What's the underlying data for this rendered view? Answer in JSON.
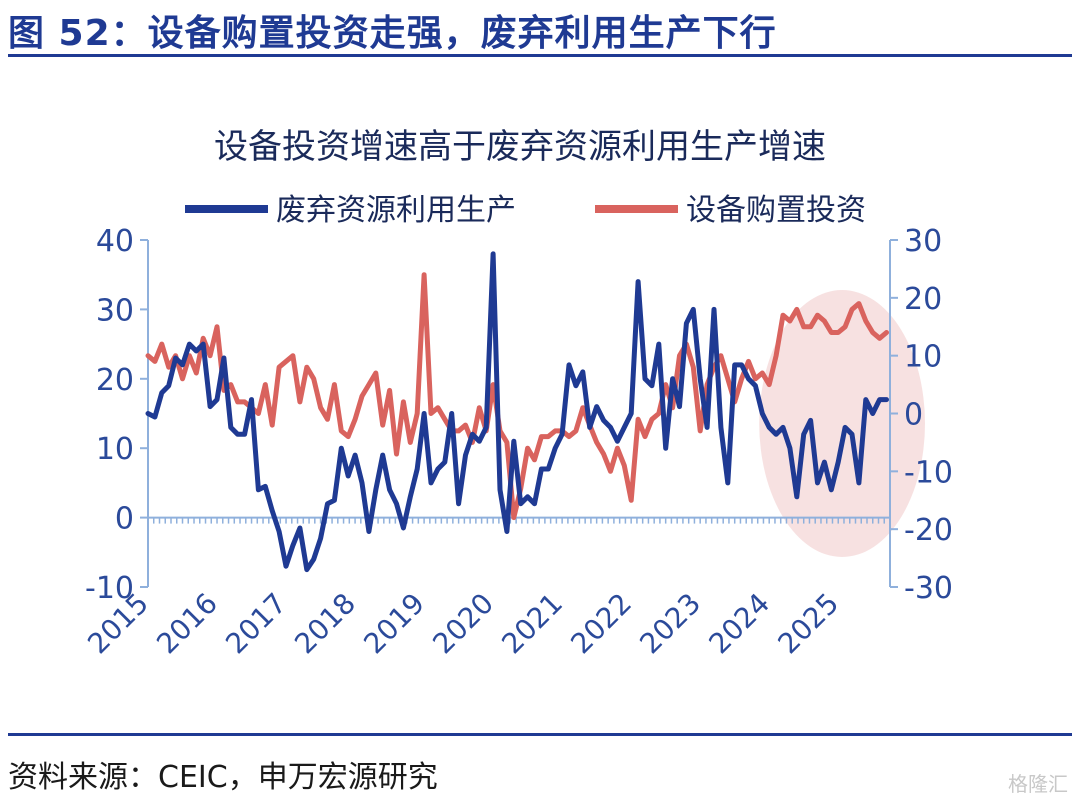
{
  "figure": {
    "title": "图 52：设备购置投资走强，废弃利用生产下行",
    "source": "资料来源：CEIC，申万宏源研究",
    "watermark": "格隆汇"
  },
  "chart_data": {
    "type": "line",
    "title": "设备投资增速高于废弃资源利用生产增速",
    "legend_position": "top",
    "grid": false,
    "x_years": [
      "2015",
      "2016",
      "2017",
      "2018",
      "2019",
      "2020",
      "2021",
      "2022",
      "2023",
      "2024",
      "2025"
    ],
    "x_range": [
      2015.0,
      2025.75
    ],
    "y_left": {
      "range": [
        -10,
        40
      ],
      "ticks": [
        -10,
        0,
        10,
        20,
        30,
        40
      ]
    },
    "y_right": {
      "range": [
        -30,
        30
      ],
      "ticks": [
        -30,
        -20,
        -10,
        0,
        10,
        20,
        30
      ]
    },
    "colors": {
      "blue": "#1f3a93",
      "red": "#d9635e",
      "axis": "#8fb0dc",
      "highlight": "#f6dcdc"
    },
    "highlight_region": {
      "x_from": 2024.0,
      "x_to": 2025.75
    },
    "series": [
      {
        "name": "废弃资源利用生产",
        "axis": "left",
        "color": "#1f3a93",
        "x": [
          2015.0,
          2015.1,
          2015.2,
          2015.3,
          2015.4,
          2015.5,
          2015.6,
          2015.7,
          2015.8,
          2015.9,
          2016.0,
          2016.1,
          2016.2,
          2016.3,
          2016.4,
          2016.5,
          2016.6,
          2016.7,
          2016.8,
          2016.9,
          2017.0,
          2017.1,
          2017.2,
          2017.3,
          2017.4,
          2017.5,
          2017.6,
          2017.7,
          2017.8,
          2017.9,
          2018.0,
          2018.1,
          2018.2,
          2018.3,
          2018.4,
          2018.5,
          2018.6,
          2018.7,
          2018.8,
          2018.9,
          2019.0,
          2019.1,
          2019.2,
          2019.3,
          2019.4,
          2019.5,
          2019.6,
          2019.7,
          2019.8,
          2019.9,
          2020.0,
          2020.1,
          2020.2,
          2020.3,
          2020.4,
          2020.5,
          2020.6,
          2020.7,
          2020.8,
          2020.9,
          2021.0,
          2021.1,
          2021.2,
          2021.3,
          2021.4,
          2021.5,
          2021.6,
          2021.7,
          2021.8,
          2021.9,
          2022.0,
          2022.1,
          2022.2,
          2022.3,
          2022.4,
          2022.5,
          2022.6,
          2022.7,
          2022.8,
          2022.9,
          2023.0,
          2023.1,
          2023.2,
          2023.3,
          2023.4,
          2023.5,
          2023.6,
          2023.7,
          2023.8,
          2023.9,
          2024.0,
          2024.1,
          2024.2,
          2024.3,
          2024.4,
          2024.5,
          2024.6,
          2024.7,
          2024.8,
          2024.9,
          2025.0,
          2025.1,
          2025.2,
          2025.3,
          2025.4,
          2025.5,
          2025.6,
          2025.7
        ],
        "values": [
          15,
          14.5,
          18,
          19,
          23,
          22,
          25,
          24,
          25,
          16,
          17,
          23,
          13,
          12,
          12,
          17,
          4,
          4.5,
          1,
          -2,
          -7,
          -4,
          -1.5,
          -7.5,
          -6,
          -3,
          2,
          2.5,
          10,
          6,
          9,
          5,
          -2,
          4,
          9,
          4,
          2,
          -1.5,
          3,
          7,
          15,
          5,
          7,
          8,
          15,
          2,
          9,
          12,
          11,
          13,
          38,
          4,
          -2,
          11,
          2,
          3,
          2,
          7,
          7,
          10,
          12,
          22,
          19,
          21,
          13,
          16,
          14,
          13,
          11,
          13,
          15,
          34,
          20,
          19,
          25,
          10,
          20,
          16,
          28,
          30,
          20,
          13,
          30,
          13,
          5,
          22,
          22,
          20,
          19,
          15,
          13,
          12,
          13,
          10,
          3,
          12,
          14,
          5,
          8,
          4,
          8,
          13,
          12,
          5,
          17,
          15,
          17,
          17
        ]
      },
      {
        "name": "设备购置投资",
        "axis": "right",
        "color": "#d9635e",
        "x": [
          2015.0,
          2015.1,
          2015.2,
          2015.3,
          2015.4,
          2015.5,
          2015.6,
          2015.7,
          2015.8,
          2015.9,
          2016.0,
          2016.1,
          2016.2,
          2016.3,
          2016.4,
          2016.5,
          2016.6,
          2016.7,
          2016.8,
          2016.9,
          2017.0,
          2017.1,
          2017.2,
          2017.3,
          2017.4,
          2017.5,
          2017.6,
          2017.7,
          2017.8,
          2017.9,
          2018.0,
          2018.1,
          2018.2,
          2018.3,
          2018.4,
          2018.5,
          2018.6,
          2018.7,
          2018.8,
          2018.9,
          2019.0,
          2019.1,
          2019.2,
          2019.3,
          2019.4,
          2019.5,
          2019.6,
          2019.7,
          2019.8,
          2019.9,
          2020.0,
          2020.1,
          2020.2,
          2020.3,
          2020.4,
          2020.5,
          2020.6,
          2020.7,
          2020.8,
          2020.9,
          2021.0,
          2021.1,
          2021.2,
          2021.3,
          2021.4,
          2021.5,
          2021.6,
          2021.7,
          2021.8,
          2021.9,
          2022.0,
          2022.1,
          2022.2,
          2022.3,
          2022.4,
          2022.5,
          2022.6,
          2022.7,
          2022.8,
          2022.9,
          2023.0,
          2023.1,
          2023.2,
          2023.3,
          2023.4,
          2023.5,
          2023.6,
          2023.7,
          2023.8,
          2023.9,
          2024.0,
          2024.1,
          2024.2,
          2024.3,
          2024.4,
          2024.5,
          2024.6,
          2024.7,
          2024.8,
          2024.9,
          2025.0,
          2025.1,
          2025.2,
          2025.3,
          2025.4,
          2025.5,
          2025.6,
          2025.7
        ],
        "values": [
          10,
          9,
          12,
          8,
          10,
          6,
          10,
          7,
          13,
          10,
          15,
          4,
          5,
          2,
          2,
          1,
          0,
          5,
          -2,
          8,
          9,
          10,
          2,
          8,
          6,
          1,
          -1,
          5,
          -3,
          -4,
          -1,
          3,
          5,
          7,
          -2,
          4,
          -7,
          2,
          -5,
          0,
          24,
          0,
          1,
          -1,
          -3,
          -3,
          -2,
          -5,
          1,
          -3,
          5,
          -3,
          -5,
          -18,
          -13,
          -6,
          -8,
          -4,
          -4,
          -3,
          -3,
          -4,
          -3,
          1,
          -2,
          -5,
          -7,
          -10,
          -6,
          -9,
          -15,
          -1,
          -4,
          -1,
          0,
          5,
          1,
          10,
          12,
          8,
          -3,
          5,
          8,
          10,
          6,
          2,
          6,
          9,
          6,
          7,
          5,
          10,
          17,
          16,
          18,
          15,
          15,
          17,
          16,
          14,
          14,
          15,
          18,
          19,
          16,
          14,
          13,
          14
        ]
      }
    ]
  }
}
